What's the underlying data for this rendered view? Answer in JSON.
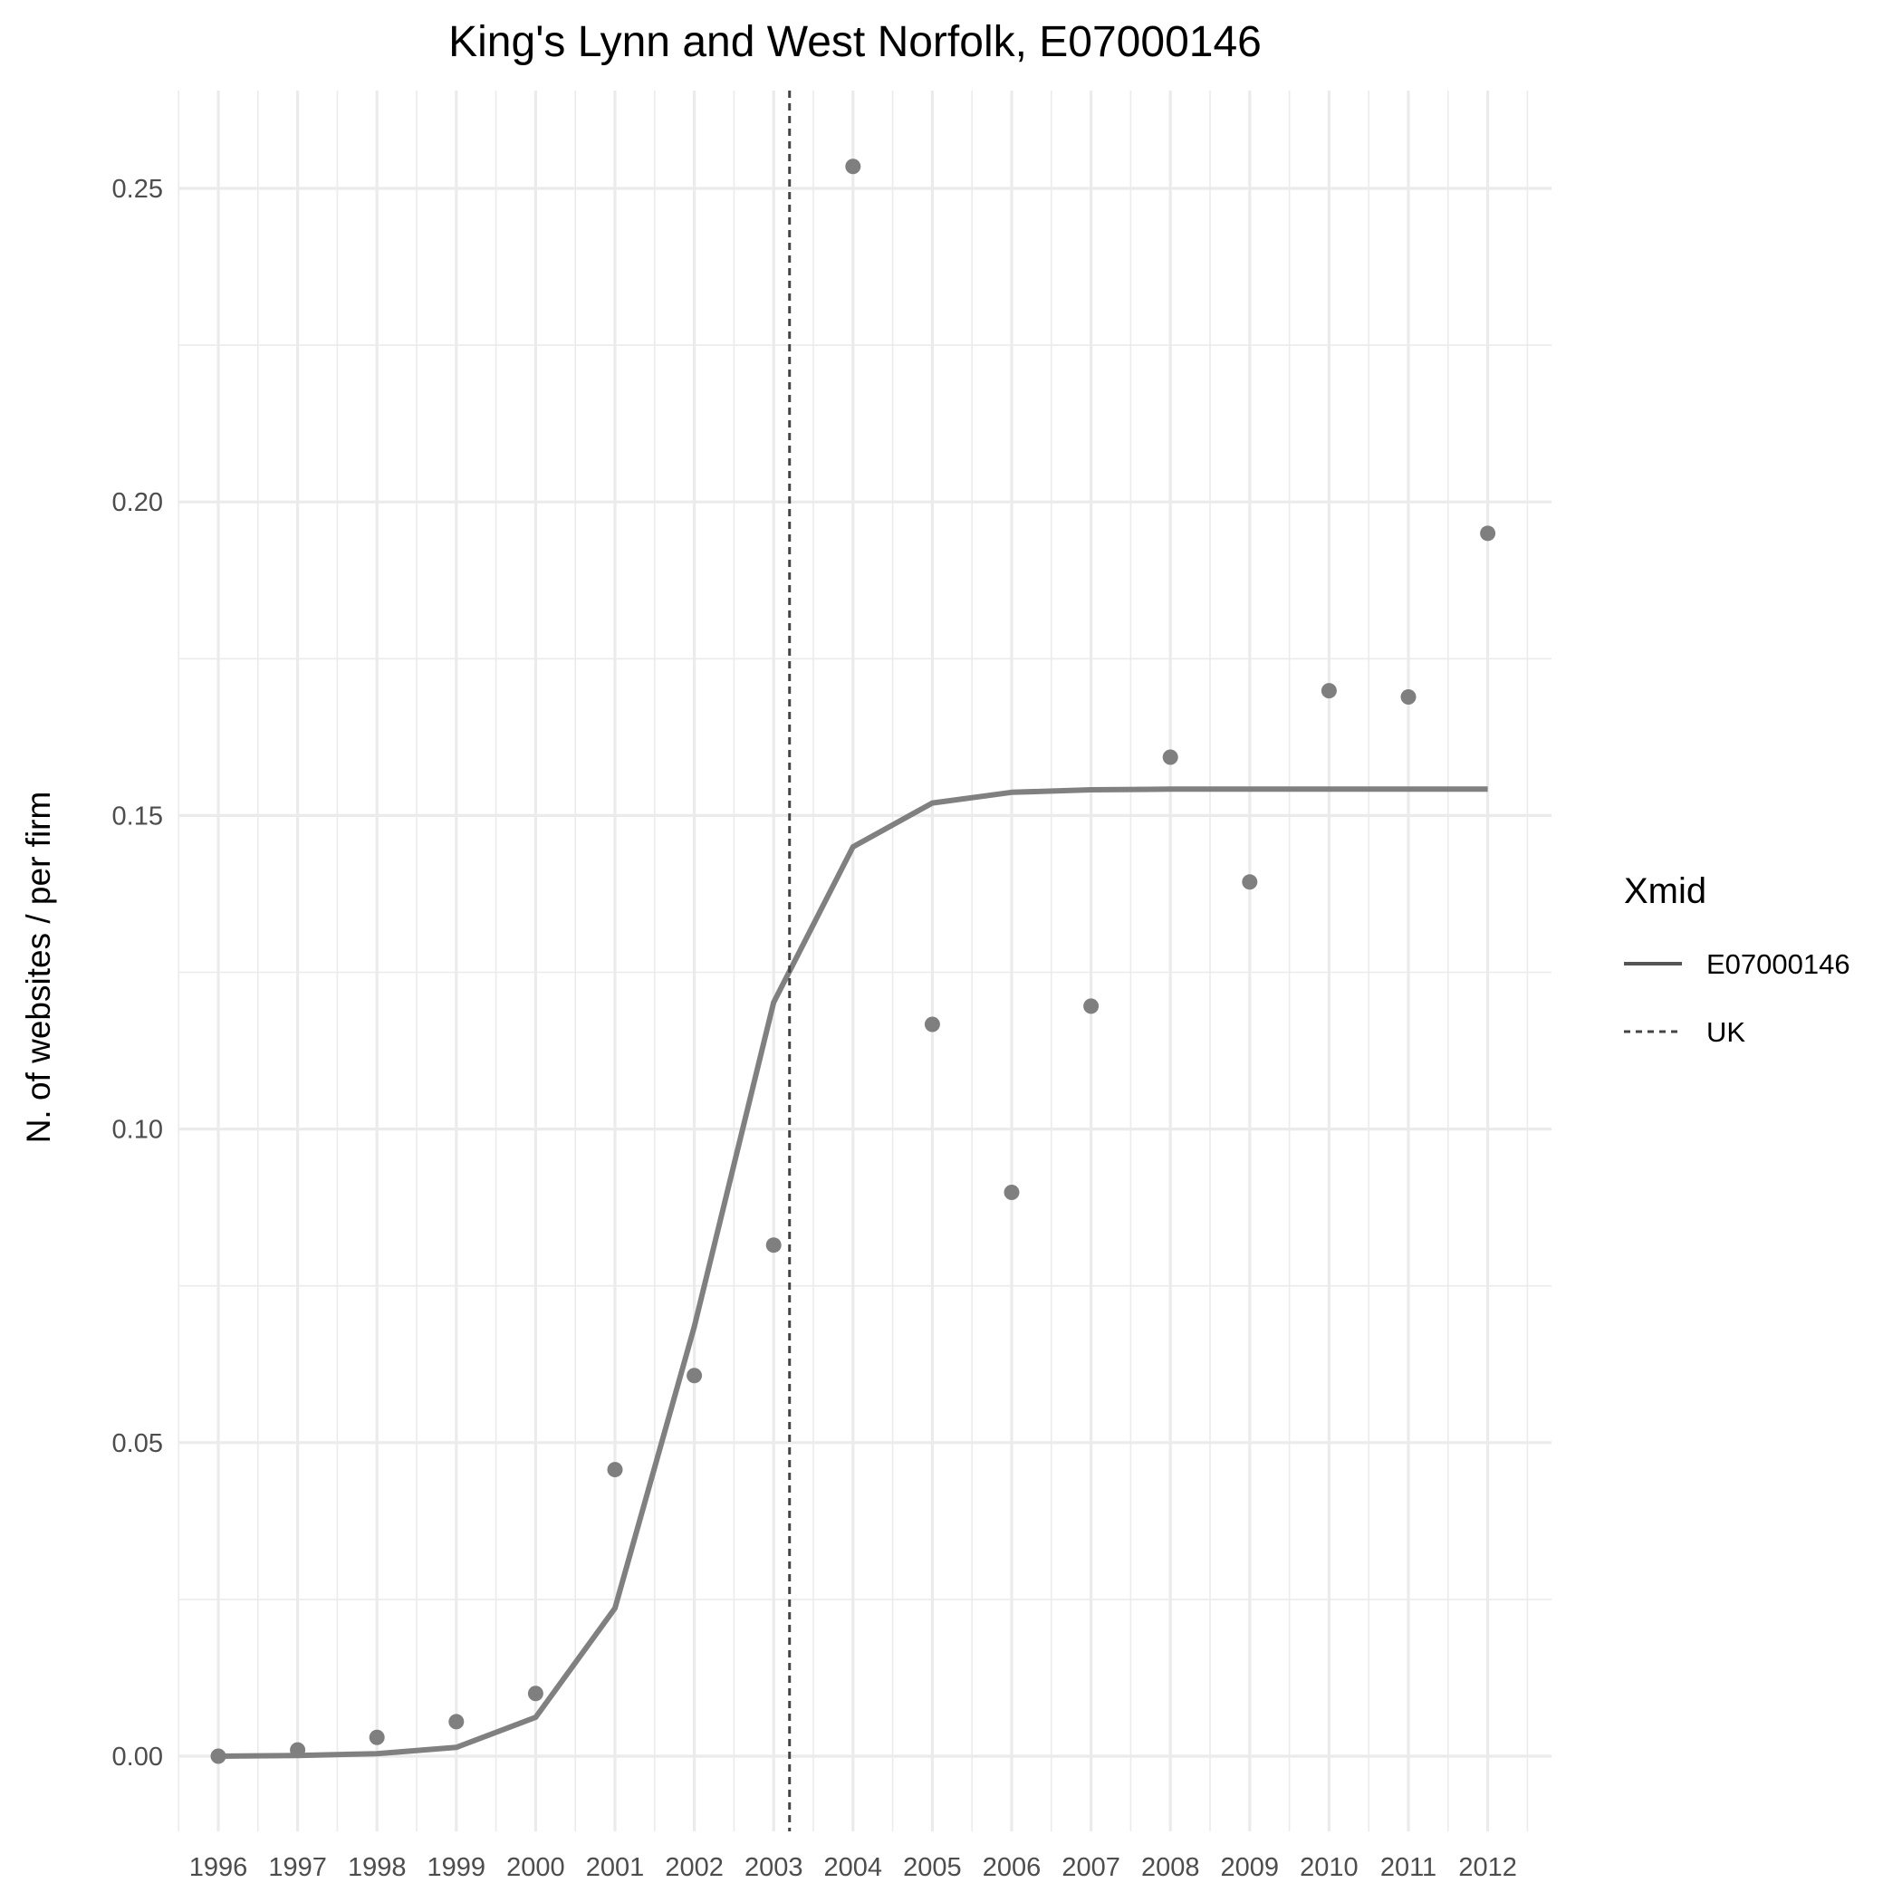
{
  "chart_data": {
    "type": "scatter",
    "title": "King's Lynn and West Norfolk, E07000146",
    "xlabel": "",
    "ylabel": "N. of websites / per firm",
    "x_ticks": [
      "1996",
      "1997",
      "1998",
      "1999",
      "2000",
      "2001",
      "2002",
      "2003",
      "2004",
      "2005",
      "2006",
      "2007",
      "2008",
      "2009",
      "2010",
      "2011",
      "2012"
    ],
    "y_ticks": [
      "0.00",
      "0.05",
      "0.10",
      "0.15",
      "0.20",
      "0.25"
    ],
    "xlim": [
      1995.5,
      2012.5
    ],
    "ylim": [
      -0.0085,
      0.266
    ],
    "grid": true,
    "legend_position": "right",
    "legend": {
      "title": "Xmid",
      "items": [
        {
          "label": "E07000146",
          "linestyle": "solid"
        },
        {
          "label": "UK",
          "linestyle": "dotted"
        }
      ]
    },
    "points": {
      "x": [
        1996,
        1997,
        1998,
        1999,
        2000,
        2001,
        2002,
        2003,
        2004,
        2005,
        2006,
        2007,
        2008,
        2009,
        2010,
        2011,
        2012
      ],
      "y": [
        0.0,
        0.001,
        0.003,
        0.0055,
        0.01,
        0.0457,
        0.0607,
        0.0815,
        0.2535,
        0.1167,
        0.0899,
        0.1196,
        0.1593,
        0.1394,
        0.1699,
        0.1689,
        0.195
      ]
    },
    "series": [
      {
        "name": "E07000146",
        "x": [
          1996,
          1997,
          1998,
          1999,
          2000,
          2001,
          2002,
          2003,
          2004,
          2005,
          2006,
          2007,
          2008,
          2009,
          2010,
          2011,
          2012
        ],
        "y": [
          0.0,
          0.0001,
          0.0004,
          0.0014,
          0.0062,
          0.0236,
          0.0685,
          0.1202,
          0.145,
          0.152,
          0.1537,
          0.1541,
          0.1542,
          0.1542,
          0.1542,
          0.1542,
          0.1542
        ]
      }
    ],
    "vlines": [
      {
        "name": "UK",
        "x": 2003.2,
        "linestyle": "dotted"
      }
    ],
    "colors": {
      "points": "#7f7f7f",
      "fit_line": "#808080",
      "uk_line": "#444444",
      "grid": "#ebebeb"
    }
  }
}
